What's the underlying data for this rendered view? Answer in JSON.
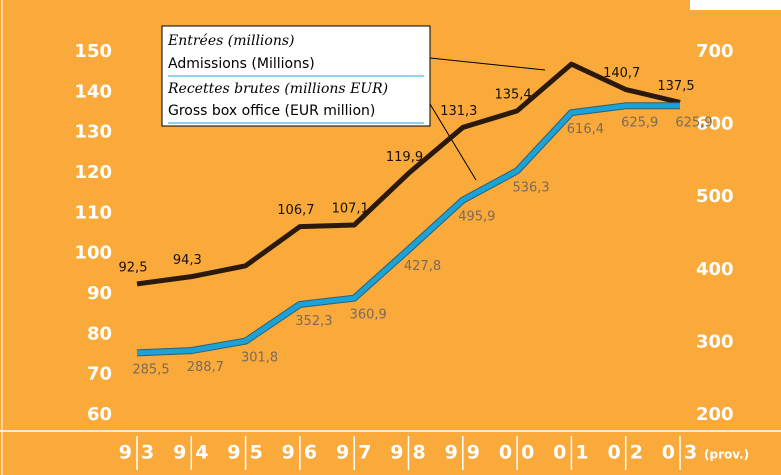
{
  "chart_data": {
    "type": "line",
    "categories": [
      "93",
      "94",
      "95",
      "96",
      "97",
      "98",
      "99",
      "00",
      "01",
      "02",
      "03"
    ],
    "x_note": "(prov.)",
    "legend": [
      "Entrées (millions)",
      "Admissions (Millions)",
      "Recettes brutes (millions EUR)",
      "Gross box office (EUR million)"
    ],
    "series": [
      {
        "name": "Admissions (Millions)",
        "color": "#2b1a0c",
        "axis": "y",
        "values": [
          92.5,
          94.3,
          97,
          106.7,
          107.1,
          119.9,
          131.3,
          135.4,
          147,
          140.7,
          137.5
        ],
        "value_labels": [
          "92,5",
          "94,3",
          null,
          "106,7",
          "107,1",
          "119,9",
          "131,3",
          "135,4",
          null,
          "140,7",
          "137,5"
        ]
      },
      {
        "name": "Gross box office (EUR million)",
        "color": "#1ba3d6",
        "axis": "y2",
        "values": [
          285.5,
          288.7,
          301.8,
          352.3,
          360.9,
          427.8,
          495.9,
          536.3,
          616.4,
          625.9,
          625.9
        ],
        "value_labels": [
          "285,5",
          "288,7",
          "301,8",
          "352,3",
          "360,9",
          "427,8",
          "495,9",
          "536,3",
          "616,4",
          "625,9",
          "625,9"
        ]
      }
    ],
    "ylim": [
      60,
      150
    ],
    "yticks": [
      60,
      70,
      80,
      90,
      100,
      110,
      120,
      130,
      140,
      150
    ],
    "y2lim": [
      200,
      700
    ],
    "y2ticks": [
      200,
      300,
      400,
      500,
      600,
      700
    ]
  }
}
